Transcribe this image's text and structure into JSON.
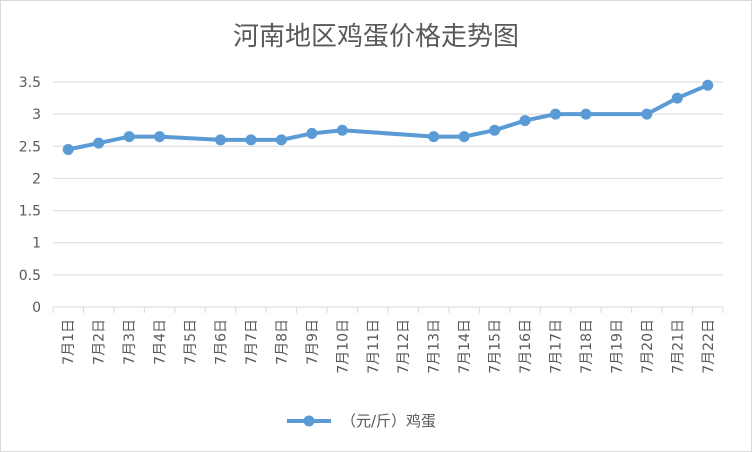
{
  "chart_data": {
    "type": "line",
    "title": "河南地区鸡蛋价格走势图",
    "xlabel": "",
    "ylabel": "",
    "categories": [
      "7月1日",
      "7月2日",
      "7月3日",
      "7月4日",
      "7月5日",
      "7月6日",
      "7月7日",
      "7月8日",
      "7月9日",
      "7月10日",
      "7月11日",
      "7月12日",
      "7月13日",
      "7月14日",
      "7月15日",
      "7月16日",
      "7月17日",
      "7月18日",
      "7月19日",
      "7月20日",
      "7月21日",
      "7月22日"
    ],
    "series": [
      {
        "name": "（元/斤）鸡蛋",
        "color": "#5b9bd5",
        "values": [
          2.45,
          2.55,
          2.65,
          2.65,
          null,
          2.6,
          2.6,
          2.6,
          2.7,
          2.75,
          null,
          null,
          2.65,
          2.65,
          2.75,
          2.9,
          3.0,
          3.0,
          null,
          3.0,
          3.25,
          3.45
        ]
      }
    ],
    "ylim": [
      0,
      3.5
    ],
    "yticks": [
      "0",
      "0.5",
      "1",
      "1.5",
      "2",
      "2.5",
      "3",
      "3.5"
    ],
    "grid": true,
    "legend_position": "bottom",
    "gridline_color": "#d9d9d9"
  }
}
